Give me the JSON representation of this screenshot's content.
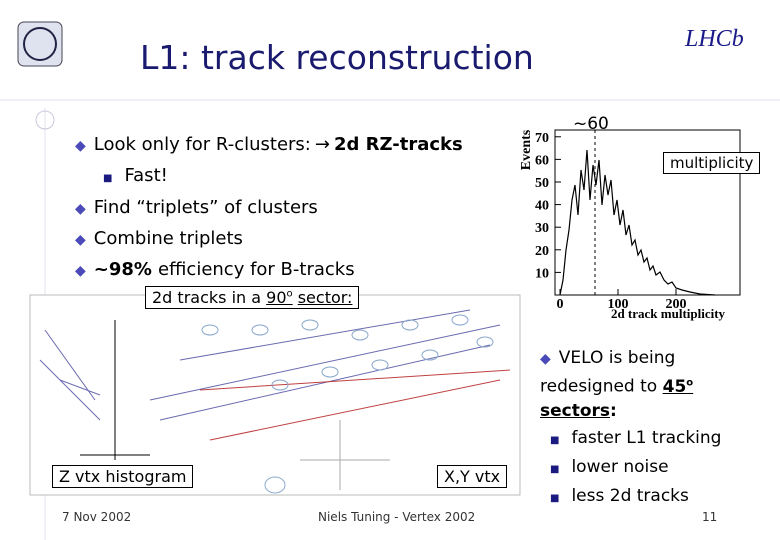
{
  "header": {
    "title": "L1: track reconstruction",
    "logo": "LHCb"
  },
  "bullets": [
    {
      "text": "Look only for R-clusters:",
      "strong": "2d  RZ-tracks",
      "sub": [
        "Fast!"
      ]
    },
    {
      "text": "Find “triplets” of clusters"
    },
    {
      "text": "Combine triplets"
    },
    {
      "strong": "~98%",
      "text": "efficiency for B-tracks"
    }
  ],
  "histogram": {
    "annotation": "~60",
    "legend": "multiplicity",
    "y_label": "Events",
    "x_label": "2d track multiplicity",
    "yticks": [
      10,
      20,
      30,
      40,
      50,
      60,
      70
    ],
    "xticks": [
      0,
      100,
      200
    ],
    "ylim": [
      0,
      73
    ],
    "xlim": [
      0,
      300
    ]
  },
  "figure": {
    "caption_pre": "2d tracks in a",
    "caption_num": "90",
    "caption_sup": "o",
    "caption_post": "sector:",
    "left_label": "Z vtx histogram",
    "right_label": "X,Y vtx"
  },
  "right_bullet": {
    "text": "VELO is being redesigned to",
    "num": "45",
    "sup": "o",
    "strong": "sectors",
    "tail": ":",
    "sub": [
      "faster L1 tracking",
      "lower noise",
      "less 2d tracks"
    ]
  },
  "footer": {
    "date": "7 Nov 2002",
    "author": "Niels Tuning - Vertex 2002",
    "page": "11"
  }
}
